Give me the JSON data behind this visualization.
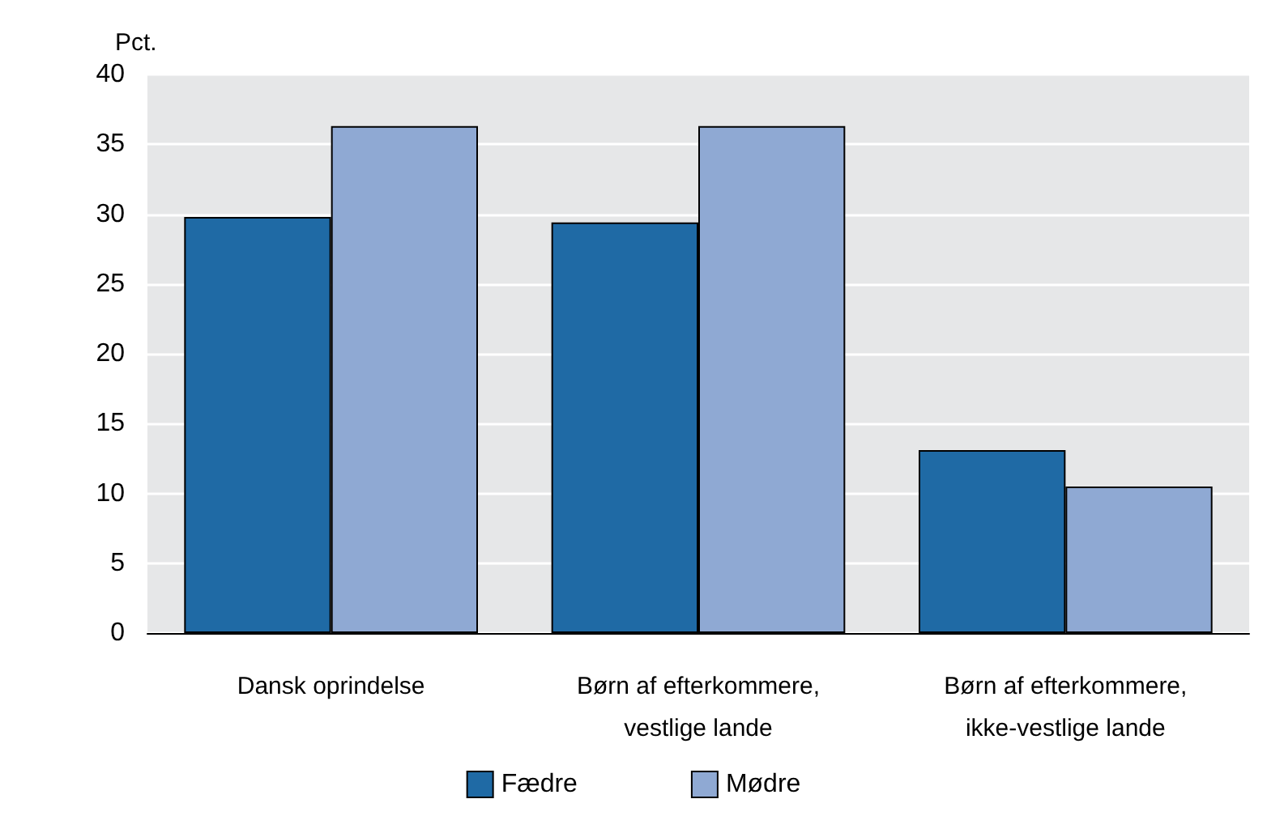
{
  "chart_data": {
    "type": "bar",
    "ylabel": "Pct.",
    "categories": [
      "Dansk oprindelse",
      "Børn af efterkommere,\nvestlige lande",
      "Børn af efterkommere,\nikke-vestlige lande"
    ],
    "series": [
      {
        "name": "Fædre",
        "color": "#1f6aa5",
        "values": [
          29.8,
          29.4,
          13.1
        ]
      },
      {
        "name": "Mødre",
        "color": "#8fa9d3",
        "values": [
          36.3,
          36.3,
          10.5
        ]
      }
    ],
    "ylim": [
      0,
      40
    ],
    "yticks": [
      0,
      5,
      10,
      15,
      20,
      25,
      30,
      35,
      40
    ],
    "grid": "y",
    "legend": "bottom"
  }
}
